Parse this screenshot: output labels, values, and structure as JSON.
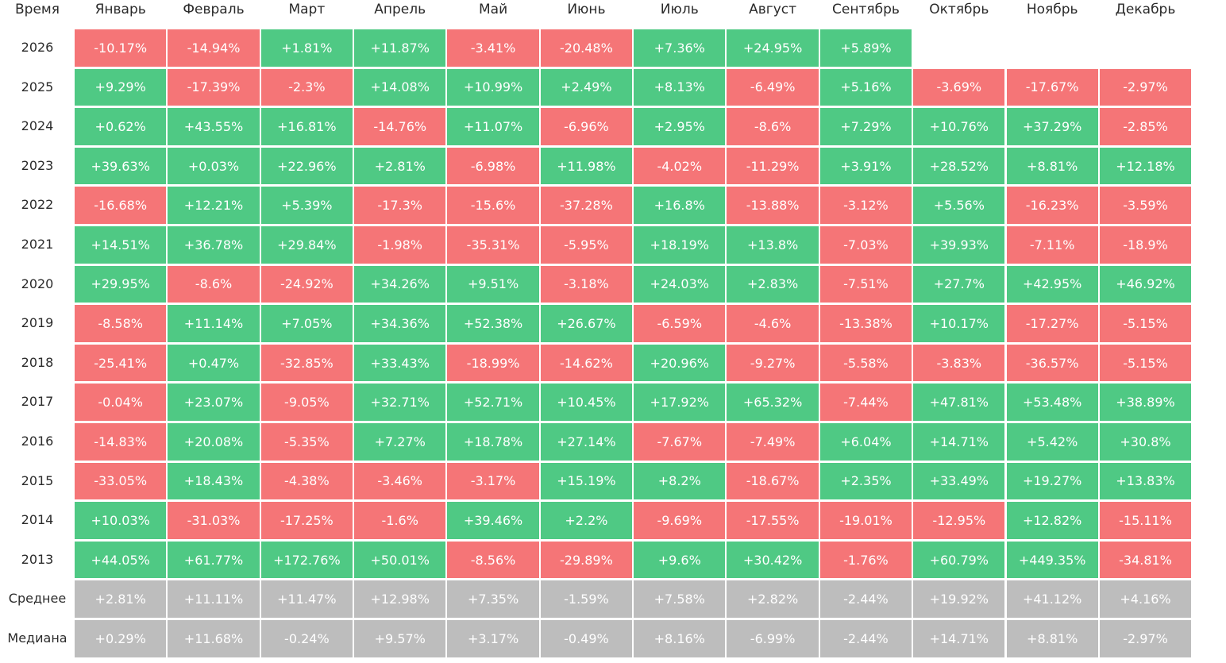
{
  "chart_data": {
    "type": "heatmap",
    "corner_label": "Время",
    "columns": [
      "Январь",
      "Февраль",
      "Март",
      "Апрель",
      "Май",
      "Июнь",
      "Июль",
      "Август",
      "Сентябрь",
      "Октябрь",
      "Ноябрь",
      "Декабрь"
    ],
    "rows": [
      {
        "label": "2026",
        "values": [
          "-10.17%",
          "-14.94%",
          "+1.81%",
          "+11.87%",
          "-3.41%",
          "-20.48%",
          "+7.36%",
          "+24.95%",
          "+5.89%",
          null,
          null,
          null
        ]
      },
      {
        "label": "2025",
        "values": [
          "+9.29%",
          "-17.39%",
          "-2.3%",
          "+14.08%",
          "+10.99%",
          "+2.49%",
          "+8.13%",
          "-6.49%",
          "+5.16%",
          "-3.69%",
          "-17.67%",
          "-2.97%"
        ]
      },
      {
        "label": "2024",
        "values": [
          "+0.62%",
          "+43.55%",
          "+16.81%",
          "-14.76%",
          "+11.07%",
          "-6.96%",
          "+2.95%",
          "-8.6%",
          "+7.29%",
          "+10.76%",
          "+37.29%",
          "-2.85%"
        ]
      },
      {
        "label": "2023",
        "values": [
          "+39.63%",
          "+0.03%",
          "+22.96%",
          "+2.81%",
          "-6.98%",
          "+11.98%",
          "-4.02%",
          "-11.29%",
          "+3.91%",
          "+28.52%",
          "+8.81%",
          "+12.18%"
        ]
      },
      {
        "label": "2022",
        "values": [
          "-16.68%",
          "+12.21%",
          "+5.39%",
          "-17.3%",
          "-15.6%",
          "-37.28%",
          "+16.8%",
          "-13.88%",
          "-3.12%",
          "+5.56%",
          "-16.23%",
          "-3.59%"
        ]
      },
      {
        "label": "2021",
        "values": [
          "+14.51%",
          "+36.78%",
          "+29.84%",
          "-1.98%",
          "-35.31%",
          "-5.95%",
          "+18.19%",
          "+13.8%",
          "-7.03%",
          "+39.93%",
          "-7.11%",
          "-18.9%"
        ]
      },
      {
        "label": "2020",
        "values": [
          "+29.95%",
          "-8.6%",
          "-24.92%",
          "+34.26%",
          "+9.51%",
          "-3.18%",
          "+24.03%",
          "+2.83%",
          "-7.51%",
          "+27.7%",
          "+42.95%",
          "+46.92%"
        ]
      },
      {
        "label": "2019",
        "values": [
          "-8.58%",
          "+11.14%",
          "+7.05%",
          "+34.36%",
          "+52.38%",
          "+26.67%",
          "-6.59%",
          "-4.6%",
          "-13.38%",
          "+10.17%",
          "-17.27%",
          "-5.15%"
        ]
      },
      {
        "label": "2018",
        "values": [
          "-25.41%",
          "+0.47%",
          "-32.85%",
          "+33.43%",
          "-18.99%",
          "-14.62%",
          "+20.96%",
          "-9.27%",
          "-5.58%",
          "-3.83%",
          "-36.57%",
          "-5.15%"
        ]
      },
      {
        "label": "2017",
        "values": [
          "-0.04%",
          "+23.07%",
          "-9.05%",
          "+32.71%",
          "+52.71%",
          "+10.45%",
          "+17.92%",
          "+65.32%",
          "-7.44%",
          "+47.81%",
          "+53.48%",
          "+38.89%"
        ]
      },
      {
        "label": "2016",
        "values": [
          "-14.83%",
          "+20.08%",
          "-5.35%",
          "+7.27%",
          "+18.78%",
          "+27.14%",
          "-7.67%",
          "-7.49%",
          "+6.04%",
          "+14.71%",
          "+5.42%",
          "+30.8%"
        ]
      },
      {
        "label": "2015",
        "values": [
          "-33.05%",
          "+18.43%",
          "-4.38%",
          "-3.46%",
          "-3.17%",
          "+15.19%",
          "+8.2%",
          "-18.67%",
          "+2.35%",
          "+33.49%",
          "+19.27%",
          "+13.83%"
        ]
      },
      {
        "label": "2014",
        "values": [
          "+10.03%",
          "-31.03%",
          "-17.25%",
          "-1.6%",
          "+39.46%",
          "+2.2%",
          "-9.69%",
          "-17.55%",
          "-19.01%",
          "-12.95%",
          "+12.82%",
          "-15.11%"
        ]
      },
      {
        "label": "2013",
        "values": [
          "+44.05%",
          "+61.77%",
          "+172.76%",
          "+50.01%",
          "-8.56%",
          "-29.89%",
          "+9.6%",
          "+30.42%",
          "-1.76%",
          "+60.79%",
          "+449.35%",
          "-34.81%"
        ]
      }
    ],
    "summary_rows": [
      {
        "label": "Среднее",
        "values": [
          "+2.81%",
          "+11.11%",
          "+11.47%",
          "+12.98%",
          "+7.35%",
          "-1.59%",
          "+7.58%",
          "+2.82%",
          "-2.44%",
          "+19.92%",
          "+41.12%",
          "+4.16%"
        ]
      },
      {
        "label": "Медиана",
        "values": [
          "+0.29%",
          "+11.68%",
          "-0.24%",
          "+9.57%",
          "+3.17%",
          "-0.49%",
          "+8.16%",
          "-6.99%",
          "-2.44%",
          "+14.71%",
          "+8.81%",
          "-2.97%"
        ]
      }
    ],
    "colors": {
      "positive": "#4fc984",
      "negative": "#f57577",
      "summary": "#bdbdbd",
      "text": "#ffffff",
      "label_text": "#2b2b2b"
    }
  }
}
